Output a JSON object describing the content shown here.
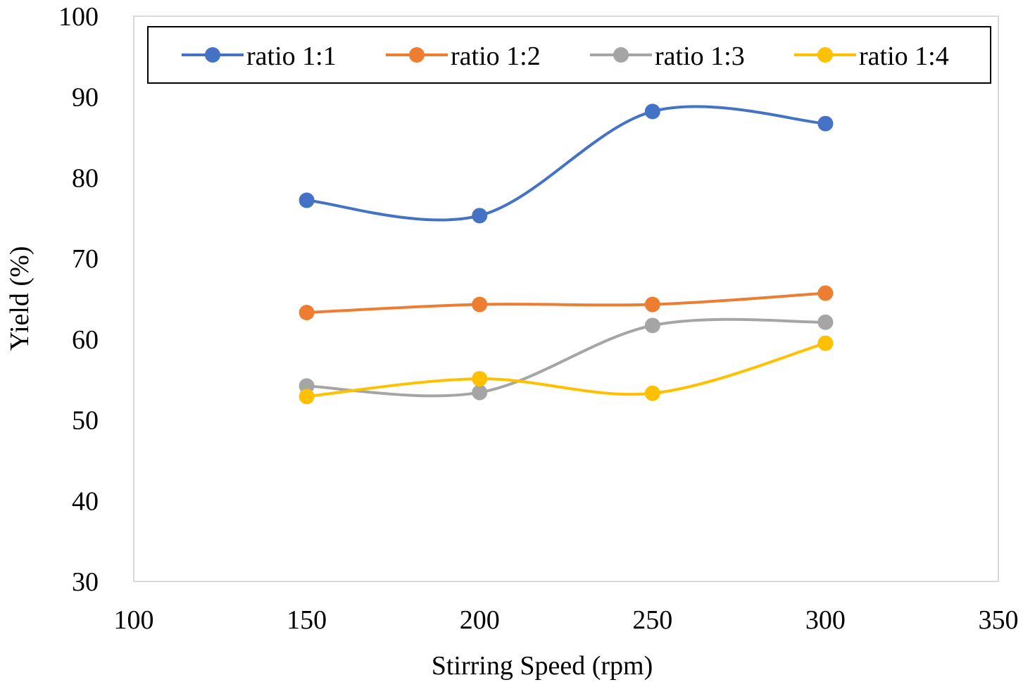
{
  "chart_data": {
    "type": "line",
    "title": "",
    "xlabel": "Stirring Speed (rpm)",
    "ylabel": "Yield (%)",
    "xlim": [
      100,
      350
    ],
    "ylim": [
      30,
      100
    ],
    "xticks": [
      100,
      150,
      200,
      250,
      300,
      350
    ],
    "yticks": [
      30,
      40,
      50,
      60,
      70,
      80,
      90,
      100
    ],
    "grid": false,
    "smooth": true,
    "legend_position": "top",
    "x": [
      150,
      200,
      250,
      300
    ],
    "series": [
      {
        "name": "ratio 1:1",
        "color": "#4472C4",
        "values": [
          77.2,
          75.3,
          88.2,
          86.7
        ]
      },
      {
        "name": "ratio 1:2",
        "color": "#ED7D31",
        "values": [
          63.3,
          64.3,
          64.3,
          65.7
        ]
      },
      {
        "name": "ratio 1:3",
        "color": "#A5A5A5",
        "values": [
          54.2,
          53.4,
          61.7,
          62.1
        ]
      },
      {
        "name": "ratio 1:4",
        "color": "#FFC000",
        "values": [
          52.9,
          55.1,
          53.3,
          59.5
        ]
      }
    ]
  }
}
